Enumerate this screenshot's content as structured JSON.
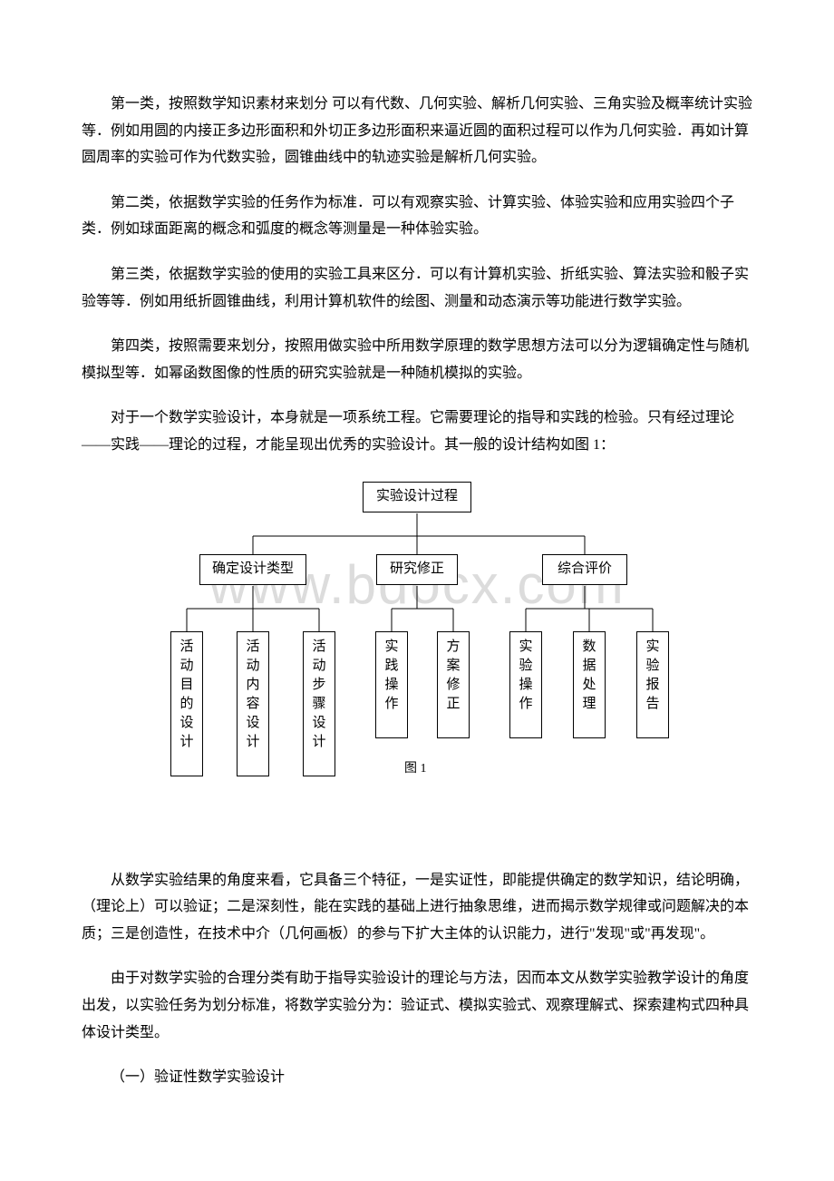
{
  "watermark": "www.bdocx.com",
  "paragraphs": {
    "p1": "第一类，按照数学知识素材来划分 可以有代数、几何实验、解析几何实验、三角实验及概率统计实验等．例如用圆的内接正多边形面积和外切正多边形面积来逼近圆的面积过程可以作为几何实验．再如计算圆周率的实验可作为代数实验，圆锥曲线中的轨迹实验是解析几何实验。",
    "p2": "第二类，依据数学实验的任务作为标准．可以有观察实验、计算实验、体验实验和应用实验四个子类．例如球面距离的概念和弧度的概念等测量是一种体验实验。",
    "p3": "第三类，依据数学实验的使用的实验工具来区分．可以有计算机实验、折纸实验、算法实验和骰子实验等等．例如用纸折圆锥曲线，利用计算机软件的绘图、测量和动态演示等功能进行数学实验。",
    "p4": "第四类，按照需要来划分，按照用做实验中所用数学原理的数学思想方法可以分为逻辑确定性与随机模拟型等．如幂函数图像的性质的研究实验就是一种随机模拟的实验。",
    "p5": "对于一个数学实验设计，本身就是一项系统工程。它需要理论的指导和实践的检验。只有经过理论——实践——理论的过程，才能呈现出优秀的实验设计。其一般的设计结构如图 1：",
    "p6": "从数学实验结果的角度来看，它具备三个特征，一是实证性，即能提供确定的数学知识，结论明确，（理论上）可以验证；二是深刻性，能在实践的基础上进行抽象思维，进而揭示数学规律或问题解决的本质；三是创造性，在技术中介（几何画板）的参与下扩大主体的认识能力，进行\"发现\"或\"再发现\"。",
    "p7": "由于对数学实验的合理分类有助于指导实验设计的理论与方法，因而本文从数学实验教学设计的角度出发，以实验任务为划分标准，将数学实验分为：验证式、模拟实验式、观察理解式、探索建构式四种具体设计类型。",
    "s1": "（一）验证性数学实验设计"
  },
  "diagram": {
    "caption": "图 1",
    "root": "实验设计过程",
    "mid1": "确定设计类型",
    "mid2": "研究修正",
    "mid3": "综合评价",
    "leaves": {
      "l1": "活动目的设计",
      "l2": "活动内容设计",
      "l3": "活动步骤设计",
      "l4": "实践操作",
      "l5": "方案修正",
      "l6": "实验操作",
      "l7": "数据处理",
      "l8": "实验报告"
    }
  },
  "style": {
    "page_bg": "#ffffff",
    "text_color": "#000000",
    "watermark_color": "#dcdcdc",
    "border_color": "#000000",
    "font_body_size": 16,
    "font_diagram_size": 15,
    "line_height": 1.85
  }
}
